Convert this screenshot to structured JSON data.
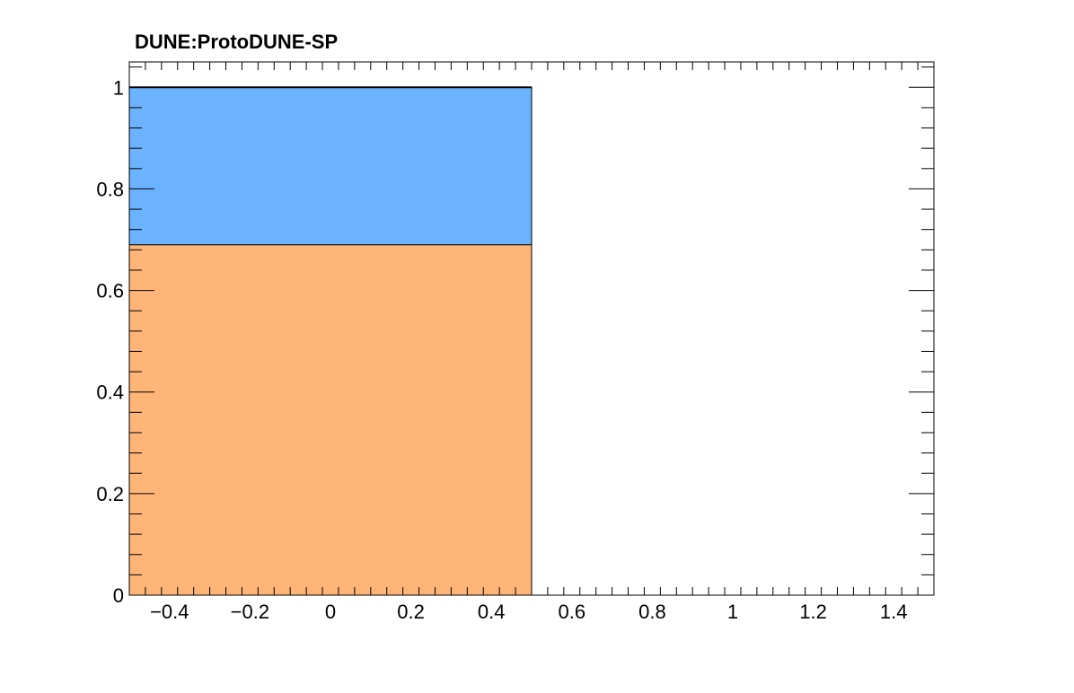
{
  "chart_data": {
    "type": "bar",
    "title": "DUNE:ProtoDUNE-SP",
    "xlabel": "",
    "ylabel": "",
    "xlim": [
      -0.5,
      1.5
    ],
    "ylim": [
      0,
      1.05
    ],
    "x_ticks": [
      -0.4,
      -0.2,
      0,
      0.2,
      0.4,
      0.6,
      0.8,
      1,
      1.2,
      1.4
    ],
    "x_tick_labels": [
      "−0.4",
      "−0.2",
      "0",
      "0.2",
      "0.4",
      "0.6",
      "0.8",
      "1",
      "1.2",
      "1.4"
    ],
    "y_ticks": [
      0,
      0.2,
      0.4,
      0.6,
      0.8,
      1
    ],
    "y_tick_labels": [
      "0",
      "0.2",
      "0.4",
      "0.6",
      "0.8",
      "1"
    ],
    "grid": false,
    "stacked": true,
    "bins": [
      {
        "x_low": -0.5,
        "x_high": 0.5
      }
    ],
    "series": [
      {
        "name": "orange",
        "color": "#ffb577",
        "values": [
          0.69
        ]
      },
      {
        "name": "blue",
        "color": "#6bb3ff",
        "values": [
          0.31
        ]
      }
    ]
  }
}
